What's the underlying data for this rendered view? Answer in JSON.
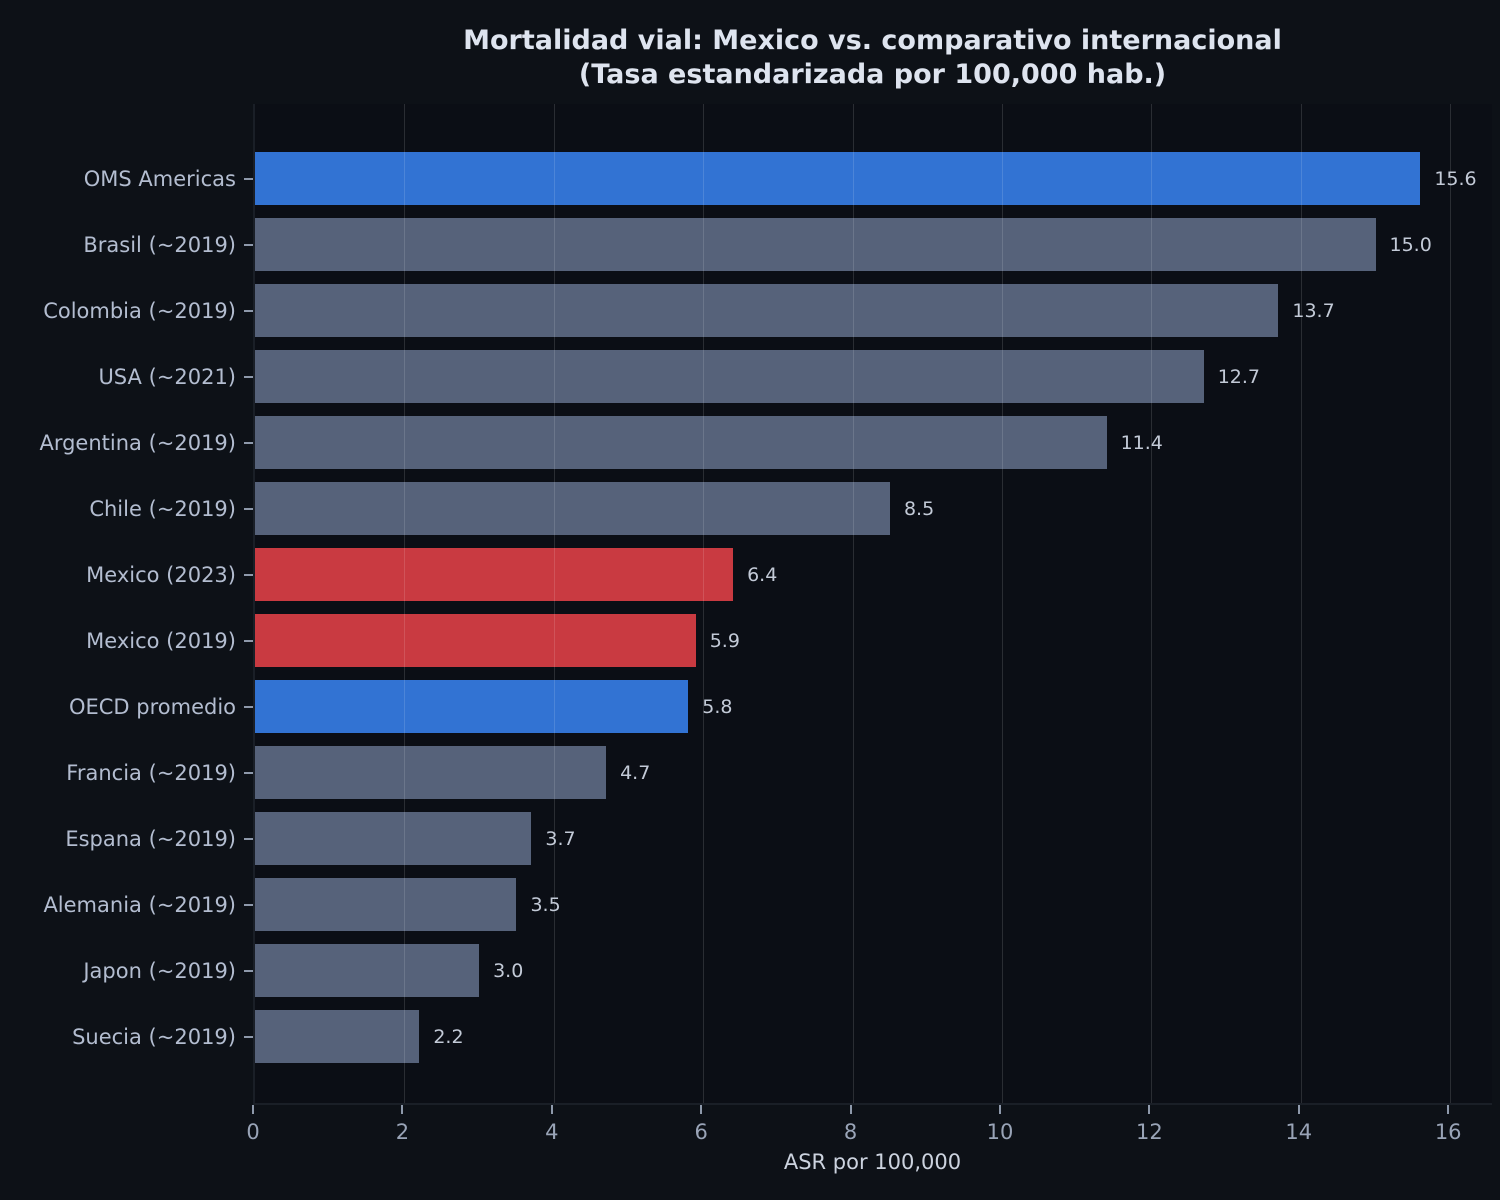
{
  "title": {
    "line1": "Mortalidad vial: Mexico vs. comparativo internacional",
    "line2": "(Tasa estandarizada por 100,000 hab.)"
  },
  "chart_data": {
    "type": "bar",
    "orientation": "horizontal",
    "title": "Mortalidad vial: Mexico vs. comparativo internacional (Tasa estandarizada por 100,000 hab.)",
    "xlabel": "ASR por 100,000",
    "ylabel": "",
    "xlim": [
      0,
      16.6
    ],
    "xticks": [
      0,
      2,
      4,
      6,
      8,
      10,
      12,
      14,
      16
    ],
    "grid": "vertical gridlines on, drawn over bars",
    "legend": "none",
    "value_labels_shown": true,
    "categories": [
      "OMS Americas",
      "Brasil (~2019)",
      "Colombia (~2019)",
      "USA (~2021)",
      "Argentina (~2019)",
      "Chile (~2019)",
      "Mexico (2023)",
      "Mexico (2019)",
      "OECD promedio",
      "Francia (~2019)",
      "Espana (~2019)",
      "Alemania (~2019)",
      "Japon (~2019)",
      "Suecia (~2019)"
    ],
    "values": [
      15.6,
      15.0,
      13.7,
      12.7,
      11.4,
      8.5,
      6.4,
      5.9,
      5.8,
      4.7,
      3.7,
      3.5,
      3.0,
      2.2
    ],
    "value_labels": [
      "15.6",
      "15.0",
      "13.7",
      "12.7",
      "11.4",
      "8.5",
      "6.4",
      "5.9",
      "5.8",
      "4.7",
      "3.7",
      "3.5",
      "3.0",
      "2.2"
    ],
    "bar_roles": [
      "benchmark",
      "country",
      "country",
      "country",
      "country",
      "country",
      "mexico",
      "mexico",
      "benchmark",
      "country",
      "country",
      "country",
      "country",
      "country"
    ],
    "colors": {
      "benchmark": "#3273d3",
      "mexico": "#c93a41",
      "country": "#56627a",
      "background": "#0d1117",
      "text": "#b3bdd0"
    }
  }
}
